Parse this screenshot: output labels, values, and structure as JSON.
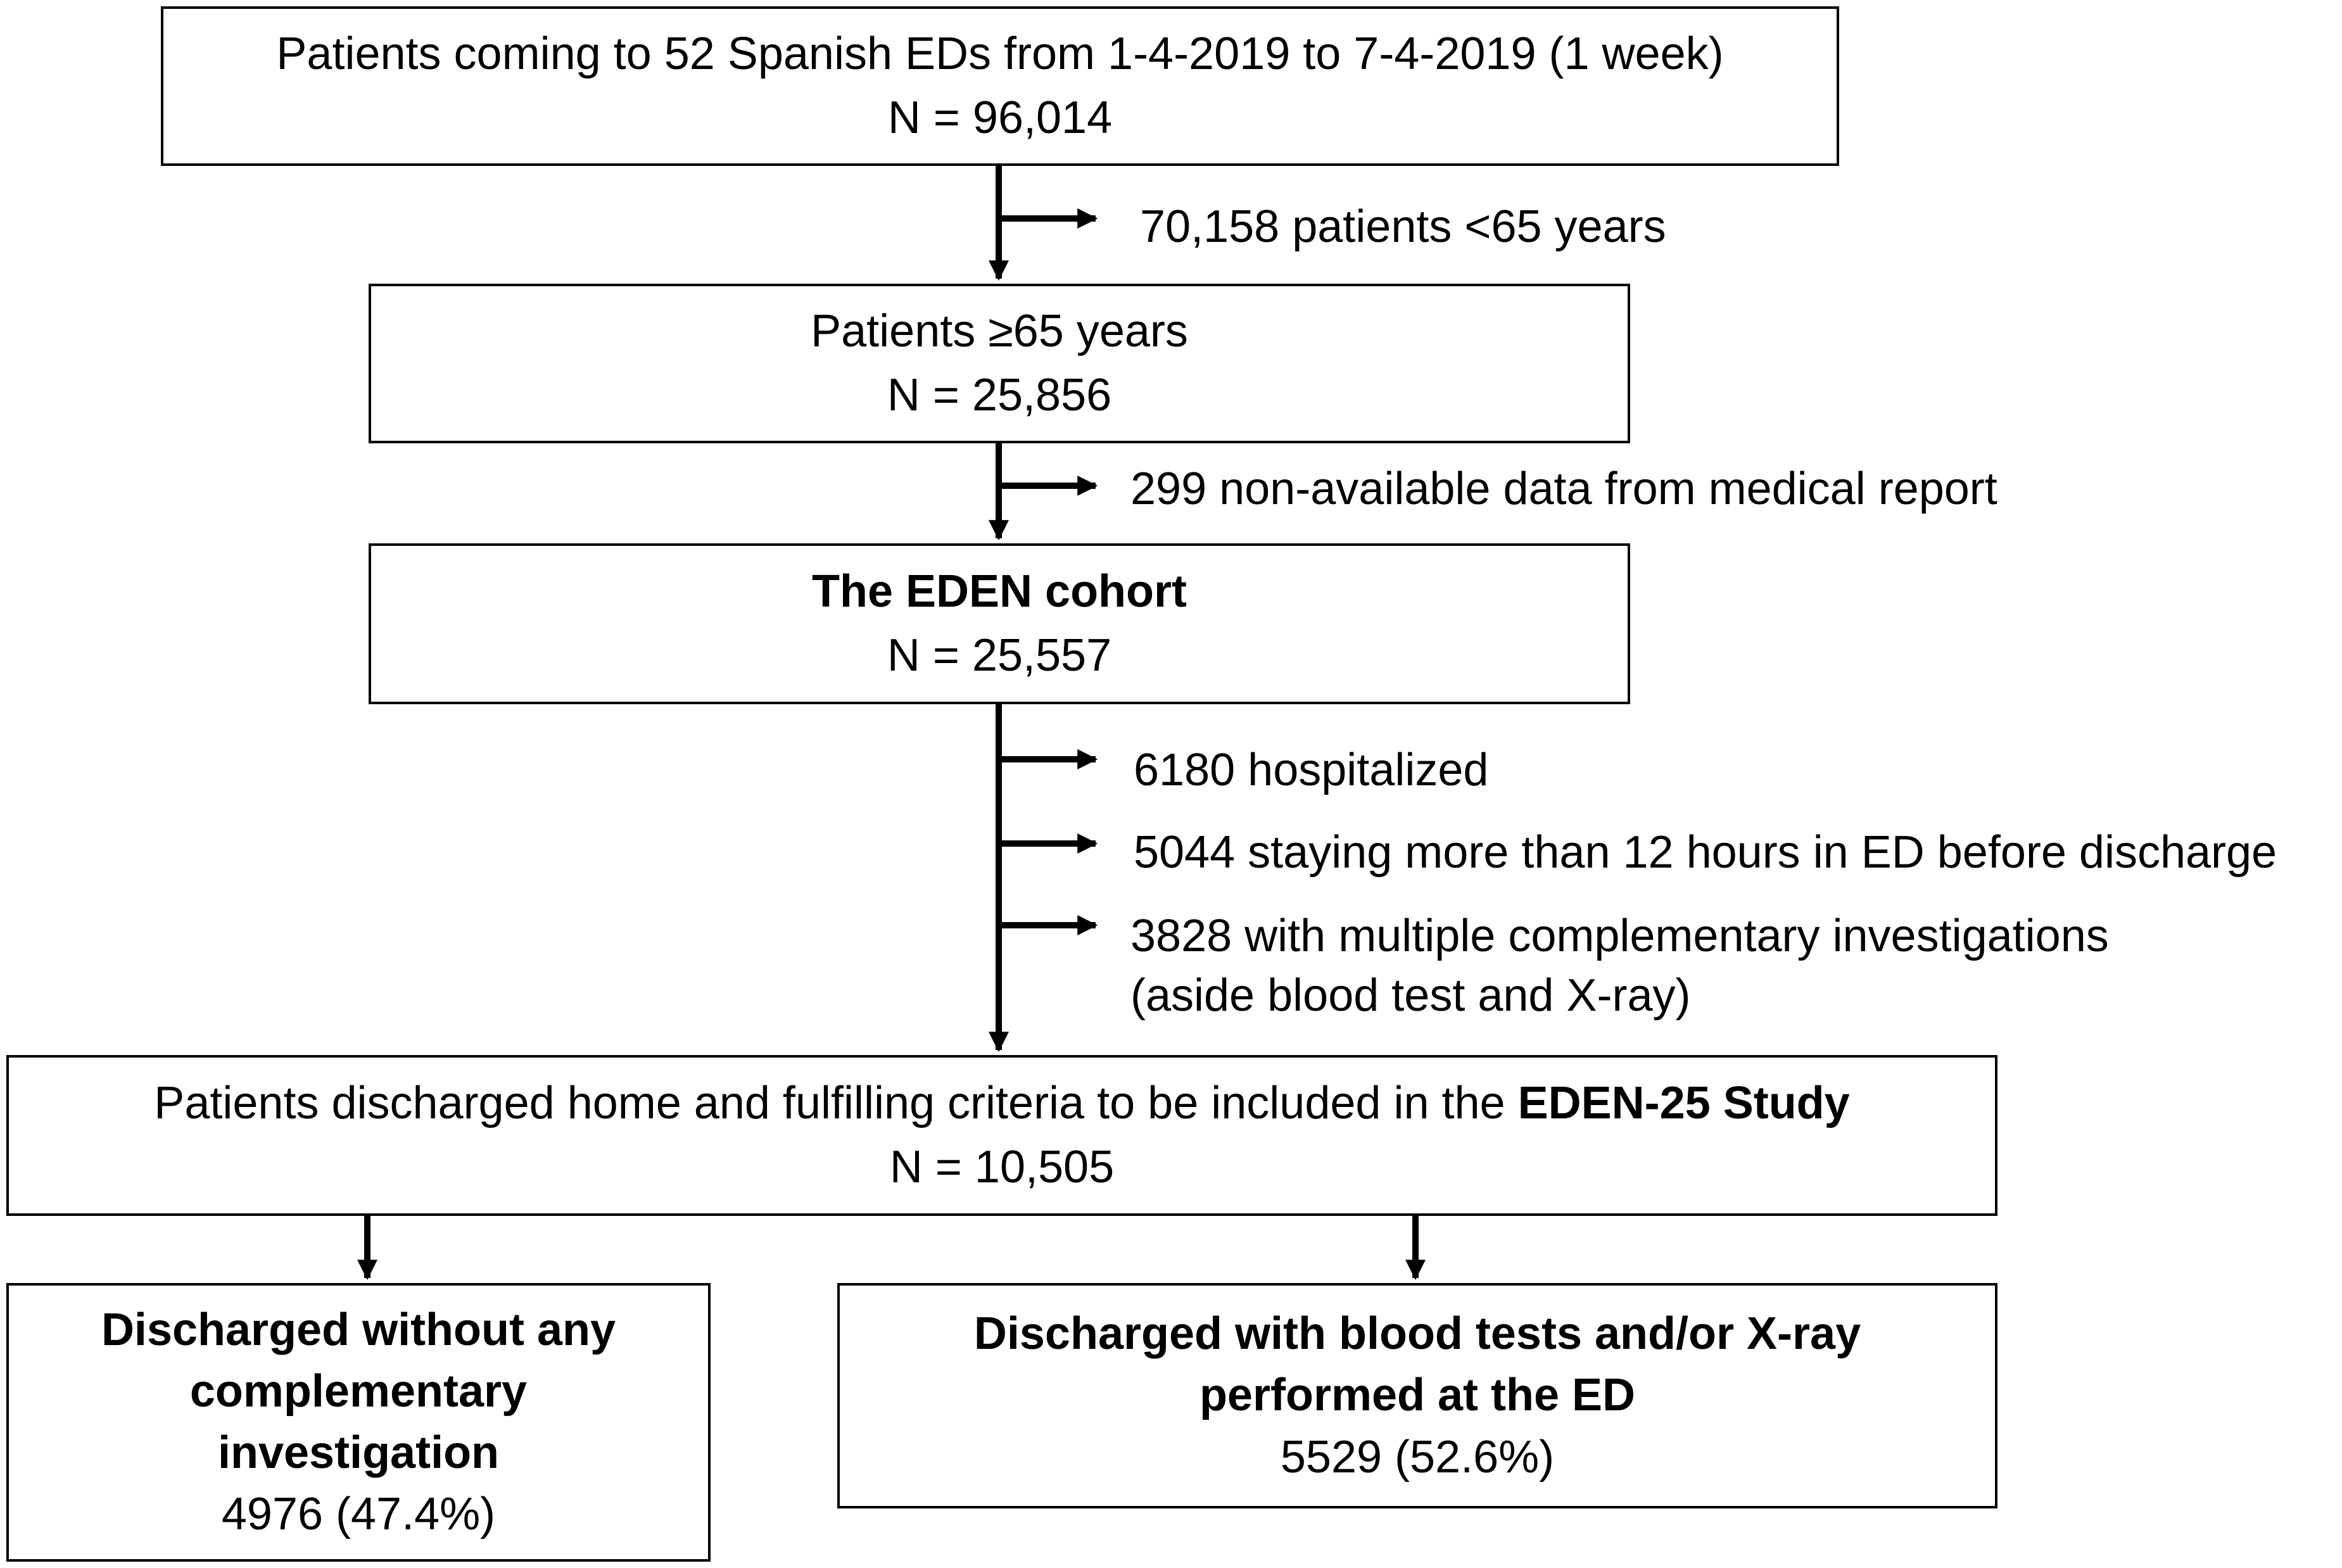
{
  "boxes": {
    "all_patients": {
      "line1": "Patients coming to 52 Spanish EDs from 1-4-2019 to 7-4-2019 (1 week)",
      "line2": "N = 96,014"
    },
    "over65": {
      "line1": "Patients ≥65 years",
      "line2": "N = 25,856"
    },
    "eden_cohort": {
      "title": "The EDEN cohort",
      "line2": "N = 25,557"
    },
    "eden25": {
      "line1_prefix": "Patients discharged home and fulfilling criteria to be included in the ",
      "line1_bold": "EDEN-25 Study",
      "line2": "N = 10,505"
    },
    "no_investigation": {
      "title_line1": "Discharged without any",
      "title_line2": "complementary",
      "title_line3": "investigation",
      "value": "4976 (47.4%)"
    },
    "with_tests": {
      "title_line1": "Discharged with blood tests and/or X-ray",
      "title_line2": "performed at the ED",
      "value": "5529 (52.6%)"
    }
  },
  "exclusions": {
    "under65": "70,158 patients <65 years",
    "non_available": "299 non-available data from medical report",
    "hospitalized": "6180 hospitalized",
    "long_stay": "5044 staying more than 12 hours in ED before discharge",
    "multiple_inv_line1": "3828 with multiple complementary investigations",
    "multiple_inv_line2": "(aside blood test and X-ray)"
  }
}
